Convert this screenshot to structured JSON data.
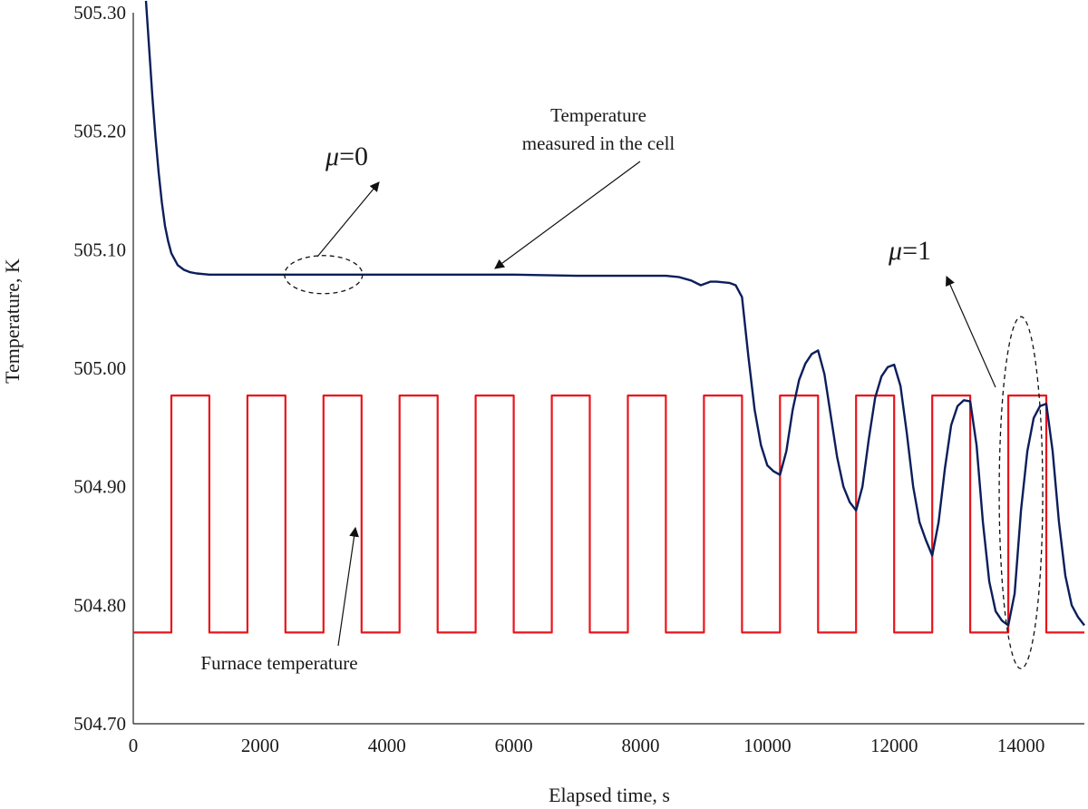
{
  "chart_data": {
    "type": "line",
    "xlabel": "Elapsed time, s",
    "ylabel": "Temperature, K",
    "xlim": [
      0,
      15000
    ],
    "ylim": [
      504.7,
      505.3
    ],
    "x_ticks": [
      0,
      2000,
      4000,
      6000,
      8000,
      10000,
      12000,
      14000
    ],
    "y_ticks": [
      504.7,
      504.8,
      504.9,
      505.0,
      505.1,
      505.2,
      505.3
    ],
    "x_tick_labels": [
      "0",
      "2000",
      "4000",
      "6000",
      "8000",
      "10000",
      "12000",
      "14000"
    ],
    "y_tick_labels": [
      "504.70",
      "504.80",
      "504.90",
      "505.00",
      "505.10",
      "505.20",
      "505.30"
    ],
    "grid": false,
    "series": [
      {
        "name": "Temperature measured in the cell",
        "color": "#0b1e5b",
        "x": [
          200,
          250,
          300,
          350,
          400,
          450,
          500,
          550,
          600,
          700,
          800,
          900,
          1000,
          1200,
          1500,
          2000,
          3000,
          4000,
          5000,
          6000,
          7000,
          8000,
          8400,
          8600,
          8800,
          8950,
          9000,
          9100,
          9200,
          9400,
          9500,
          9600,
          9700,
          9800,
          9900,
          10000,
          10100,
          10200,
          10300,
          10400,
          10500,
          10600,
          10700,
          10800,
          10900,
          11000,
          11100,
          11200,
          11300,
          11400,
          11500,
          11600,
          11700,
          11800,
          11900,
          12000,
          12100,
          12200,
          12300,
          12400,
          12500,
          12600,
          12700,
          12800,
          12900,
          13000,
          13100,
          13200,
          13300,
          13400,
          13500,
          13600,
          13700,
          13800,
          13900,
          14000,
          14100,
          14200,
          14300,
          14400,
          14500,
          14600,
          14700,
          14800,
          14900,
          15000
        ],
        "y": [
          505.31,
          505.27,
          505.23,
          505.195,
          505.165,
          505.14,
          505.12,
          505.107,
          505.097,
          505.087,
          505.083,
          505.081,
          505.08,
          505.079,
          505.079,
          505.079,
          505.079,
          505.079,
          505.079,
          505.079,
          505.078,
          505.078,
          505.078,
          505.077,
          505.074,
          505.07,
          505.071,
          505.073,
          505.073,
          505.072,
          505.07,
          505.06,
          505.01,
          504.965,
          504.935,
          504.918,
          504.913,
          504.91,
          504.93,
          504.965,
          504.99,
          505.004,
          505.012,
          505.015,
          504.995,
          504.96,
          504.925,
          504.9,
          504.887,
          504.88,
          504.9,
          504.94,
          504.975,
          504.993,
          505.001,
          505.003,
          504.985,
          504.945,
          504.9,
          504.87,
          504.855,
          504.842,
          504.87,
          504.915,
          504.952,
          504.968,
          504.973,
          504.972,
          504.935,
          504.87,
          504.82,
          504.795,
          504.787,
          504.783,
          504.81,
          504.88,
          504.93,
          504.958,
          504.968,
          504.97,
          504.93,
          504.87,
          504.825,
          504.8,
          504.79,
          504.783
        ]
      },
      {
        "name": "Furnace temperature",
        "color": "#e8141b",
        "low": 504.777,
        "high": 504.977,
        "x": [
          0,
          600,
          600,
          1200,
          1200,
          1800,
          1800,
          2400,
          2400,
          3000,
          3000,
          3600,
          3600,
          4200,
          4200,
          4800,
          4800,
          5400,
          5400,
          6000,
          6000,
          6600,
          6600,
          7200,
          7200,
          7800,
          7800,
          8400,
          8400,
          9000,
          9000,
          9600,
          9600,
          10200,
          10200,
          10800,
          10800,
          11400,
          11400,
          12000,
          12000,
          12600,
          12600,
          13200,
          13200,
          13800,
          13800,
          14400,
          14400,
          15000
        ],
        "y": [
          504.777,
          504.777,
          504.977,
          504.977,
          504.777,
          504.777,
          504.977,
          504.977,
          504.777,
          504.777,
          504.977,
          504.977,
          504.777,
          504.777,
          504.977,
          504.977,
          504.777,
          504.777,
          504.977,
          504.977,
          504.777,
          504.777,
          504.977,
          504.977,
          504.777,
          504.777,
          504.977,
          504.977,
          504.777,
          504.777,
          504.977,
          504.977,
          504.777,
          504.777,
          504.977,
          504.977,
          504.777,
          504.777,
          504.977,
          504.977,
          504.777,
          504.777,
          504.977,
          504.977,
          504.777,
          504.777,
          504.977,
          504.977,
          504.777,
          504.777
        ]
      }
    ],
    "annotations": [
      {
        "id": "mu0",
        "lines": [
          "μ=0"
        ]
      },
      {
        "id": "mu1",
        "lines": [
          "μ=1"
        ]
      },
      {
        "id": "cell",
        "lines": [
          "Temperature",
          "measured in the cell"
        ]
      },
      {
        "id": "furnace",
        "lines": [
          "Furnace temperature"
        ]
      }
    ],
    "callout_targets": [
      {
        "id": "mu0-ellipse",
        "x": 3000,
        "y": 505.079
      },
      {
        "id": "mu1-ellipse",
        "x": 14000,
        "y": 504.895
      }
    ]
  }
}
